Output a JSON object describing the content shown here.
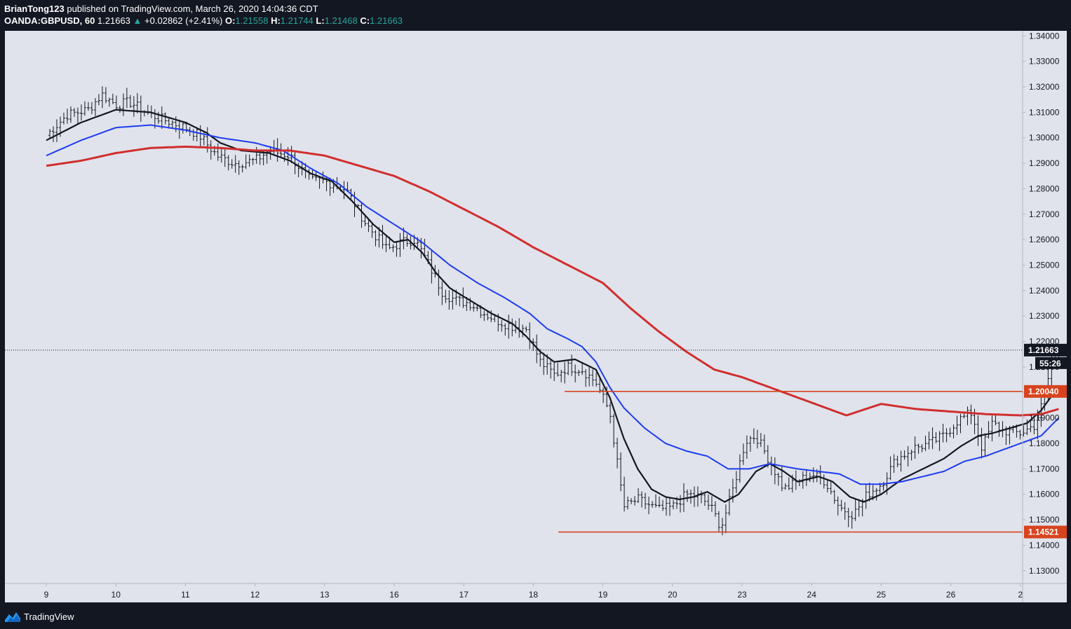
{
  "header": {
    "author": "BrianTong123",
    "published": "published on TradingView.com, March 26, 2020 14:04:36 CDT",
    "symbol": "OANDA:GBPUSD, 60",
    "last": "1.21663",
    "change": "+0.02862 (+2.41%)",
    "o_label": "O:",
    "o_value": "1.21558",
    "h_label": "H:",
    "h_value": "1.21744",
    "l_label": "L:",
    "l_value": "1.21468",
    "c_label": "C:",
    "c_value": "1.21663"
  },
  "footer": {
    "brand": "TradingView"
  },
  "colors": {
    "background": "#e0e3eb",
    "frame": "#131722",
    "ema_fast": "#131722",
    "ema_mid": "#1e3cf0",
    "ema_slow": "#d12e2e",
    "level": "#d8431e",
    "bars": "#131722"
  },
  "chart_data": {
    "type": "ohlc",
    "timeframe": "60",
    "ylim": [
      1.125,
      1.342
    ],
    "y_ticks": [
      "1.34000",
      "1.33000",
      "1.32000",
      "1.31000",
      "1.30000",
      "1.29000",
      "1.28000",
      "1.27000",
      "1.26000",
      "1.25000",
      "1.24000",
      "1.23000",
      "1.22000",
      "1.21000",
      "1.20000",
      "1.19000",
      "1.18000",
      "1.17000",
      "1.16000",
      "1.15000",
      "1.14000",
      "1.13000"
    ],
    "x_ticks": [
      "9",
      "10",
      "11",
      "12",
      "13",
      "16",
      "17",
      "18",
      "19",
      "20",
      "23",
      "24",
      "25",
      "26",
      "2"
    ],
    "price_line": {
      "value": 1.21663,
      "label": "1.21663",
      "countdown": "55:26"
    },
    "levels": [
      {
        "value": 1.2004,
        "label": "1.20040",
        "from_day": 7.45
      },
      {
        "value": 1.14521,
        "label": "1.14521",
        "from_day": 7.36
      }
    ],
    "ohlc_anchors_day_close": [
      [
        0,
        1.301
      ],
      [
        0.3,
        1.309
      ],
      [
        0.6,
        1.311
      ],
      [
        0.8,
        1.317
      ],
      [
        1.0,
        1.313
      ],
      [
        1.2,
        1.314
      ],
      [
        1.5,
        1.309
      ],
      [
        1.8,
        1.306
      ],
      [
        2.0,
        1.304
      ],
      [
        2.2,
        1.301
      ],
      [
        2.45,
        1.293
      ],
      [
        2.7,
        1.29
      ],
      [
        3.0,
        1.291
      ],
      [
        3.2,
        1.295
      ],
      [
        3.5,
        1.293
      ],
      [
        3.8,
        1.283
      ],
      [
        4.0,
        1.283
      ],
      [
        4.3,
        1.28
      ],
      [
        4.6,
        1.266
      ],
      [
        4.9,
        1.256
      ],
      [
        5.1,
        1.259
      ],
      [
        5.3,
        1.26
      ],
      [
        5.5,
        1.25
      ],
      [
        5.7,
        1.239
      ],
      [
        5.9,
        1.236
      ],
      [
        6.1,
        1.235
      ],
      [
        6.3,
        1.231
      ],
      [
        6.5,
        1.228
      ],
      [
        6.7,
        1.226
      ],
      [
        6.9,
        1.225
      ],
      [
        7.1,
        1.212
      ],
      [
        7.3,
        1.207
      ],
      [
        7.5,
        1.21
      ],
      [
        7.7,
        1.209
      ],
      [
        7.9,
        1.204
      ],
      [
        8.1,
        1.192
      ],
      [
        8.3,
        1.155
      ],
      [
        8.5,
        1.158
      ],
      [
        8.8,
        1.154
      ],
      [
        9.0,
        1.155
      ],
      [
        9.2,
        1.16
      ],
      [
        9.4,
        1.159
      ],
      [
        9.55,
        1.155
      ],
      [
        9.7,
        1.147
      ],
      [
        9.85,
        1.16
      ],
      [
        10.05,
        1.181
      ],
      [
        10.2,
        1.183
      ],
      [
        10.4,
        1.173
      ],
      [
        10.6,
        1.162
      ],
      [
        10.8,
        1.165
      ],
      [
        11.0,
        1.168
      ],
      [
        11.2,
        1.165
      ],
      [
        11.4,
        1.155
      ],
      [
        11.6,
        1.152
      ],
      [
        11.8,
        1.16
      ],
      [
        12.0,
        1.164
      ],
      [
        12.2,
        1.173
      ],
      [
        12.45,
        1.178
      ],
      [
        12.7,
        1.18
      ],
      [
        12.9,
        1.183
      ],
      [
        13.1,
        1.189
      ],
      [
        13.3,
        1.192
      ],
      [
        13.45,
        1.178
      ],
      [
        13.6,
        1.188
      ],
      [
        13.75,
        1.185
      ],
      [
        14.0,
        1.184
      ],
      [
        14.2,
        1.187
      ],
      [
        14.35,
        1.198
      ],
      [
        14.45,
        1.213
      ],
      [
        14.55,
        1.2166
      ]
    ],
    "series": [
      {
        "kind": "ema_fast",
        "anchors": [
          [
            0,
            1.299
          ],
          [
            0.5,
            1.306
          ],
          [
            1.0,
            1.311
          ],
          [
            1.5,
            1.31
          ],
          [
            2.0,
            1.306
          ],
          [
            2.3,
            1.302
          ],
          [
            2.5,
            1.298
          ],
          [
            2.8,
            1.295
          ],
          [
            3.2,
            1.294
          ],
          [
            3.5,
            1.291
          ],
          [
            3.8,
            1.286
          ],
          [
            4.1,
            1.283
          ],
          [
            4.4,
            1.275
          ],
          [
            4.7,
            1.266
          ],
          [
            5.0,
            1.259
          ],
          [
            5.2,
            1.26
          ],
          [
            5.4,
            1.255
          ],
          [
            5.6,
            1.247
          ],
          [
            5.8,
            1.241
          ],
          [
            6.1,
            1.236
          ],
          [
            6.4,
            1.231
          ],
          [
            6.7,
            1.227
          ],
          [
            6.9,
            1.222
          ],
          [
            7.1,
            1.216
          ],
          [
            7.3,
            1.212
          ],
          [
            7.6,
            1.213
          ],
          [
            7.9,
            1.209
          ],
          [
            8.1,
            1.198
          ],
          [
            8.3,
            1.182
          ],
          [
            8.5,
            1.17
          ],
          [
            8.7,
            1.162
          ],
          [
            8.9,
            1.159
          ],
          [
            9.1,
            1.158
          ],
          [
            9.3,
            1.159
          ],
          [
            9.5,
            1.161
          ],
          [
            9.75,
            1.157
          ],
          [
            9.95,
            1.16
          ],
          [
            10.2,
            1.169
          ],
          [
            10.4,
            1.172
          ],
          [
            10.6,
            1.169
          ],
          [
            10.8,
            1.165
          ],
          [
            11.1,
            1.167
          ],
          [
            11.3,
            1.165
          ],
          [
            11.55,
            1.159
          ],
          [
            11.75,
            1.157
          ],
          [
            12.0,
            1.16
          ],
          [
            12.3,
            1.166
          ],
          [
            12.6,
            1.17
          ],
          [
            12.9,
            1.174
          ],
          [
            13.15,
            1.179
          ],
          [
            13.4,
            1.183
          ],
          [
            13.6,
            1.184
          ],
          [
            13.85,
            1.186
          ],
          [
            14.1,
            1.188
          ],
          [
            14.3,
            1.193
          ],
          [
            14.5,
            1.2005
          ]
        ]
      },
      {
        "kind": "ema_mid",
        "anchors": [
          [
            0,
            1.293
          ],
          [
            0.5,
            1.299
          ],
          [
            1.0,
            1.304
          ],
          [
            1.5,
            1.305
          ],
          [
            2.0,
            1.303
          ],
          [
            2.5,
            1.3
          ],
          [
            3.0,
            1.298
          ],
          [
            3.4,
            1.295
          ],
          [
            3.8,
            1.288
          ],
          [
            4.2,
            1.282
          ],
          [
            4.6,
            1.273
          ],
          [
            5.0,
            1.266
          ],
          [
            5.4,
            1.259
          ],
          [
            5.8,
            1.25
          ],
          [
            6.2,
            1.243
          ],
          [
            6.6,
            1.237
          ],
          [
            6.95,
            1.231
          ],
          [
            7.2,
            1.225
          ],
          [
            7.5,
            1.221
          ],
          [
            7.7,
            1.218
          ],
          [
            7.9,
            1.212
          ],
          [
            8.1,
            1.202
          ],
          [
            8.3,
            1.194
          ],
          [
            8.6,
            1.186
          ],
          [
            8.9,
            1.18
          ],
          [
            9.2,
            1.177
          ],
          [
            9.5,
            1.175
          ],
          [
            9.8,
            1.17
          ],
          [
            10.1,
            1.17
          ],
          [
            10.4,
            1.172
          ],
          [
            10.8,
            1.17
          ],
          [
            11.1,
            1.169
          ],
          [
            11.4,
            1.168
          ],
          [
            11.7,
            1.164
          ],
          [
            12.0,
            1.164
          ],
          [
            12.3,
            1.165
          ],
          [
            12.6,
            1.167
          ],
          [
            12.9,
            1.169
          ],
          [
            13.2,
            1.173
          ],
          [
            13.5,
            1.175
          ],
          [
            13.8,
            1.178
          ],
          [
            14.1,
            1.181
          ],
          [
            14.3,
            1.183
          ],
          [
            14.55,
            1.19
          ]
        ]
      },
      {
        "kind": "ema_slow",
        "anchors": [
          [
            0,
            1.289
          ],
          [
            0.5,
            1.291
          ],
          [
            1.0,
            1.294
          ],
          [
            1.5,
            1.296
          ],
          [
            2.0,
            1.2965
          ],
          [
            2.5,
            1.296
          ],
          [
            3.0,
            1.295
          ],
          [
            3.5,
            1.295
          ],
          [
            4.0,
            1.293
          ],
          [
            4.5,
            1.289
          ],
          [
            5.0,
            1.285
          ],
          [
            5.5,
            1.279
          ],
          [
            6.0,
            1.272
          ],
          [
            6.5,
            1.265
          ],
          [
            7.0,
            1.257
          ],
          [
            7.5,
            1.25
          ],
          [
            8.0,
            1.243
          ],
          [
            8.4,
            1.233
          ],
          [
            8.8,
            1.224
          ],
          [
            9.2,
            1.216
          ],
          [
            9.6,
            1.209
          ],
          [
            10.0,
            1.206
          ],
          [
            10.5,
            1.201
          ],
          [
            11.0,
            1.196
          ],
          [
            11.5,
            1.191
          ],
          [
            12.0,
            1.1955
          ],
          [
            12.5,
            1.1935
          ],
          [
            13.0,
            1.1925
          ],
          [
            13.5,
            1.1915
          ],
          [
            14.0,
            1.191
          ],
          [
            14.3,
            1.1915
          ],
          [
            14.55,
            1.1935
          ]
        ]
      }
    ]
  }
}
